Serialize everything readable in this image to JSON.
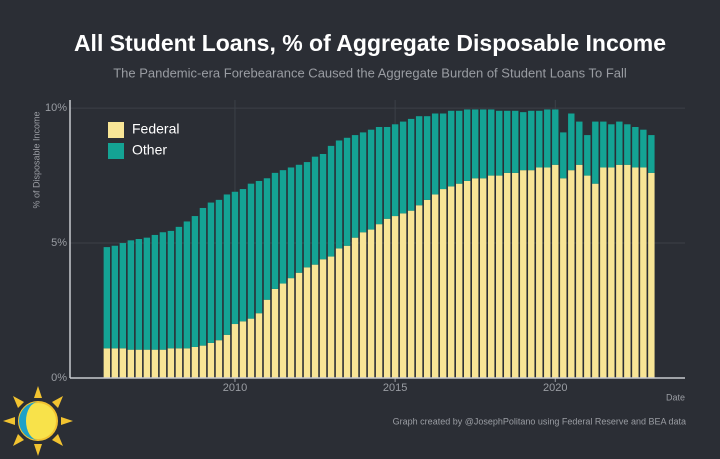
{
  "chart_data": {
    "type": "stacked_bar",
    "title": "All Student Loans, % of Aggregate Disposable Income",
    "subtitle": "The Pandemic-era Forebearance Caused the Aggregate Burden of Student Loans To Fall",
    "y_label": "% of Disposable Income",
    "x_label": "Date",
    "caption": "Graph created by @JosephPolitano using Federal Reserve and BEA data",
    "x": [
      2006,
      2006.25,
      2006.5,
      2006.75,
      2007,
      2007.25,
      2007.5,
      2007.75,
      2008,
      2008.25,
      2008.5,
      2008.75,
      2009,
      2009.25,
      2009.5,
      2009.75,
      2010,
      2010.25,
      2010.5,
      2010.75,
      2011,
      2011.25,
      2011.5,
      2011.75,
      2012,
      2012.25,
      2012.5,
      2012.75,
      2013,
      2013.25,
      2013.5,
      2013.75,
      2014,
      2014.25,
      2014.5,
      2014.75,
      2015,
      2015.25,
      2015.5,
      2015.75,
      2016,
      2016.25,
      2016.5,
      2016.75,
      2017,
      2017.25,
      2017.5,
      2017.75,
      2018,
      2018.25,
      2018.5,
      2018.75,
      2019,
      2019.25,
      2019.5,
      2019.75,
      2020,
      2020.25,
      2020.5,
      2020.75,
      2021,
      2021.25,
      2021.5,
      2021.75,
      2022,
      2022.25,
      2022.5,
      2022.75,
      2023
    ],
    "series": [
      {
        "name": "Federal",
        "color": "#f8e596",
        "values": [
          1.1,
          1.1,
          1.1,
          1.05,
          1.05,
          1.05,
          1.05,
          1.05,
          1.1,
          1.1,
          1.1,
          1.15,
          1.2,
          1.3,
          1.4,
          1.6,
          2.0,
          2.1,
          2.2,
          2.4,
          2.9,
          3.3,
          3.5,
          3.7,
          3.9,
          4.1,
          4.2,
          4.4,
          4.5,
          4.8,
          4.9,
          5.2,
          5.4,
          5.5,
          5.7,
          5.9,
          6.0,
          6.1,
          6.2,
          6.4,
          6.6,
          6.8,
          7.0,
          7.1,
          7.2,
          7.3,
          7.4,
          7.4,
          7.5,
          7.5,
          7.6,
          7.6,
          7.7,
          7.7,
          7.8,
          7.8,
          7.9,
          7.4,
          7.7,
          7.9,
          7.5,
          7.2,
          7.8,
          7.8,
          7.9,
          7.9,
          7.8,
          7.8,
          7.6
        ]
      },
      {
        "name": "Other",
        "color": "#14a394",
        "values": [
          3.75,
          3.8,
          3.9,
          4.05,
          4.1,
          4.15,
          4.25,
          4.35,
          4.35,
          4.5,
          4.7,
          4.85,
          5.1,
          5.2,
          5.2,
          5.2,
          4.9,
          4.9,
          5.0,
          4.9,
          4.5,
          4.3,
          4.2,
          4.1,
          4.0,
          3.9,
          4.0,
          3.9,
          4.1,
          4.0,
          4.0,
          3.8,
          3.7,
          3.7,
          3.6,
          3.4,
          3.4,
          3.4,
          3.4,
          3.3,
          3.1,
          3.0,
          2.8,
          2.8,
          2.7,
          2.65,
          2.55,
          2.55,
          2.45,
          2.4,
          2.3,
          2.3,
          2.15,
          2.2,
          2.1,
          2.15,
          2.05,
          1.7,
          2.1,
          1.6,
          1.5,
          2.3,
          1.7,
          1.6,
          1.6,
          1.5,
          1.5,
          1.4,
          1.4
        ]
      }
    ],
    "xlim": [
      2004.85,
      2024.05
    ],
    "xticks": [
      2010,
      2015,
      2020
    ],
    "ylim": [
      0,
      10.3
    ],
    "yticks": [
      {
        "value": 0,
        "label": "0%"
      },
      {
        "value": 5,
        "label": "5%"
      },
      {
        "value": 10,
        "label": "10%"
      }
    ],
    "grid": true,
    "legend": "top-left"
  }
}
